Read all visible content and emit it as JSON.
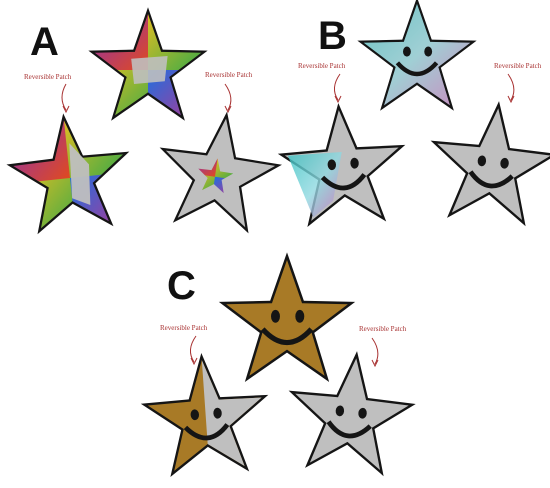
{
  "groups": [
    {
      "letter": "A",
      "left_label": "Reversible Patch",
      "right_label": "Reversible Patch"
    },
    {
      "letter": "B",
      "left_label": "Reversible Patch",
      "right_label": "Reversible Patch"
    },
    {
      "letter": "C",
      "left_label": "Reversible Patch",
      "right_label": "Reversible Patch"
    }
  ],
  "colors": {
    "border": "#151515",
    "silver": "#d9d9d9",
    "gold": "#c99a3c",
    "label": "#a83232"
  }
}
